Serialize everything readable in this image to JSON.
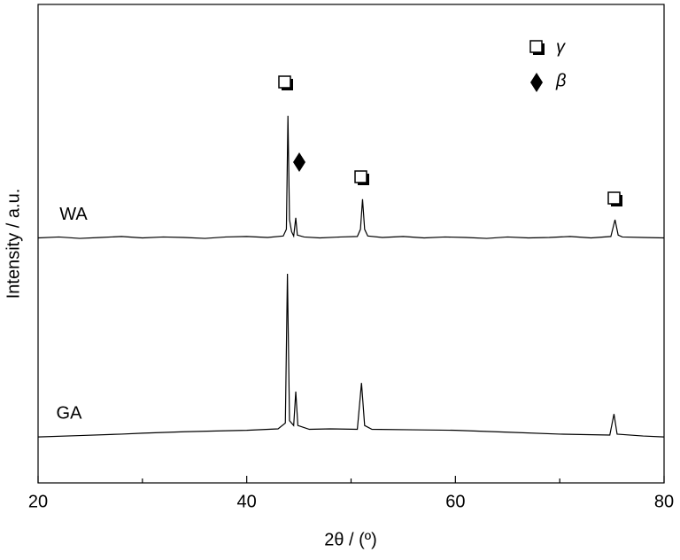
{
  "chart_data": {
    "type": "line",
    "xlabel": "2θ / (º)",
    "ylabel": "Intensity / a.u.",
    "xlim": [
      20,
      80
    ],
    "xticks": [
      20,
      40,
      60,
      80
    ],
    "xminor_ticks": [
      30,
      50,
      70
    ],
    "ylim": [
      0,
      100
    ],
    "series": [
      {
        "name": "WA",
        "color": "#000000",
        "x": [
          20,
          22,
          24,
          26,
          28,
          30,
          32,
          34,
          36,
          38,
          40,
          42,
          43.5,
          43.8,
          43.95,
          44.1,
          44.3,
          44.5,
          44.7,
          44.85,
          45.5,
          47,
          49,
          50.6,
          50.9,
          51.1,
          51.3,
          51.6,
          53,
          55,
          57,
          59,
          61,
          63,
          65,
          67,
          69,
          71,
          73,
          74.9,
          75.3,
          75.6,
          76,
          78,
          80
        ],
        "values": [
          51.2,
          51.4,
          51.1,
          51.3,
          51.5,
          51.2,
          51.4,
          51.3,
          51.1,
          51.4,
          51.5,
          51.3,
          51.6,
          53,
          76.7,
          55,
          52.5,
          51.6,
          55.4,
          51.8,
          51.4,
          51.2,
          51.4,
          51.5,
          53,
          59.3,
          53,
          51.6,
          51.3,
          51.5,
          51.2,
          51.4,
          51.3,
          51.1,
          51.4,
          51.2,
          51.3,
          51.5,
          51.2,
          51.5,
          55,
          51.8,
          51.4,
          51.3,
          51.2
        ]
      },
      {
        "name": "GA",
        "color": "#000000",
        "x": [
          20,
          24,
          28,
          30,
          34,
          38,
          40,
          43,
          43.7,
          43.9,
          44.1,
          44.5,
          44.7,
          44.9,
          46,
          48,
          50.6,
          51.0,
          51.3,
          52,
          56,
          60,
          65,
          70,
          74.8,
          75.2,
          75.5,
          78,
          80
        ],
        "values": [
          9.6,
          9.9,
          10.2,
          10.4,
          10.7,
          10.9,
          11.0,
          11.3,
          12.5,
          43.7,
          13,
          12,
          19.1,
          12,
          11.2,
          11.3,
          11.2,
          20.9,
          12,
          11.2,
          11.1,
          11.0,
          10.6,
          10.2,
          10.0,
          14.4,
          10.2,
          9.8,
          9.6
        ]
      }
    ],
    "phase_legend": [
      "γ",
      "β"
    ]
  }
}
